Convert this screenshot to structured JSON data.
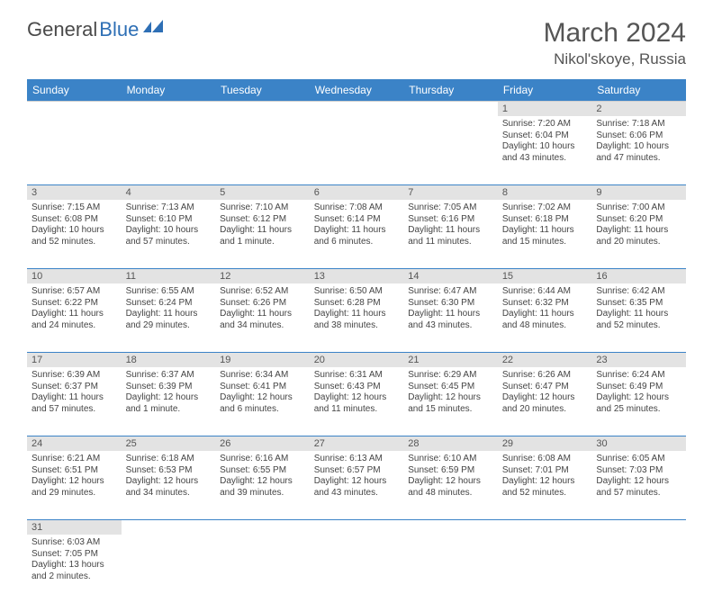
{
  "brand": {
    "part1": "General",
    "part2": "Blue"
  },
  "title": {
    "month": "March 2024",
    "location": "Nikol'skoye, Russia"
  },
  "colors": {
    "header_bg": "#3b83c7",
    "daynum_bg": "#e3e3e3",
    "rule": "#3b83c7"
  },
  "dow": [
    "Sunday",
    "Monday",
    "Tuesday",
    "Wednesday",
    "Thursday",
    "Friday",
    "Saturday"
  ],
  "weeks": [
    [
      null,
      null,
      null,
      null,
      null,
      {
        "n": "1",
        "sr": "Sunrise: 7:20 AM",
        "ss": "Sunset: 6:04 PM",
        "d1": "Daylight: 10 hours",
        "d2": "and 43 minutes."
      },
      {
        "n": "2",
        "sr": "Sunrise: 7:18 AM",
        "ss": "Sunset: 6:06 PM",
        "d1": "Daylight: 10 hours",
        "d2": "and 47 minutes."
      }
    ],
    [
      {
        "n": "3",
        "sr": "Sunrise: 7:15 AM",
        "ss": "Sunset: 6:08 PM",
        "d1": "Daylight: 10 hours",
        "d2": "and 52 minutes."
      },
      {
        "n": "4",
        "sr": "Sunrise: 7:13 AM",
        "ss": "Sunset: 6:10 PM",
        "d1": "Daylight: 10 hours",
        "d2": "and 57 minutes."
      },
      {
        "n": "5",
        "sr": "Sunrise: 7:10 AM",
        "ss": "Sunset: 6:12 PM",
        "d1": "Daylight: 11 hours",
        "d2": "and 1 minute."
      },
      {
        "n": "6",
        "sr": "Sunrise: 7:08 AM",
        "ss": "Sunset: 6:14 PM",
        "d1": "Daylight: 11 hours",
        "d2": "and 6 minutes."
      },
      {
        "n": "7",
        "sr": "Sunrise: 7:05 AM",
        "ss": "Sunset: 6:16 PM",
        "d1": "Daylight: 11 hours",
        "d2": "and 11 minutes."
      },
      {
        "n": "8",
        "sr": "Sunrise: 7:02 AM",
        "ss": "Sunset: 6:18 PM",
        "d1": "Daylight: 11 hours",
        "d2": "and 15 minutes."
      },
      {
        "n": "9",
        "sr": "Sunrise: 7:00 AM",
        "ss": "Sunset: 6:20 PM",
        "d1": "Daylight: 11 hours",
        "d2": "and 20 minutes."
      }
    ],
    [
      {
        "n": "10",
        "sr": "Sunrise: 6:57 AM",
        "ss": "Sunset: 6:22 PM",
        "d1": "Daylight: 11 hours",
        "d2": "and 24 minutes."
      },
      {
        "n": "11",
        "sr": "Sunrise: 6:55 AM",
        "ss": "Sunset: 6:24 PM",
        "d1": "Daylight: 11 hours",
        "d2": "and 29 minutes."
      },
      {
        "n": "12",
        "sr": "Sunrise: 6:52 AM",
        "ss": "Sunset: 6:26 PM",
        "d1": "Daylight: 11 hours",
        "d2": "and 34 minutes."
      },
      {
        "n": "13",
        "sr": "Sunrise: 6:50 AM",
        "ss": "Sunset: 6:28 PM",
        "d1": "Daylight: 11 hours",
        "d2": "and 38 minutes."
      },
      {
        "n": "14",
        "sr": "Sunrise: 6:47 AM",
        "ss": "Sunset: 6:30 PM",
        "d1": "Daylight: 11 hours",
        "d2": "and 43 minutes."
      },
      {
        "n": "15",
        "sr": "Sunrise: 6:44 AM",
        "ss": "Sunset: 6:32 PM",
        "d1": "Daylight: 11 hours",
        "d2": "and 48 minutes."
      },
      {
        "n": "16",
        "sr": "Sunrise: 6:42 AM",
        "ss": "Sunset: 6:35 PM",
        "d1": "Daylight: 11 hours",
        "d2": "and 52 minutes."
      }
    ],
    [
      {
        "n": "17",
        "sr": "Sunrise: 6:39 AM",
        "ss": "Sunset: 6:37 PM",
        "d1": "Daylight: 11 hours",
        "d2": "and 57 minutes."
      },
      {
        "n": "18",
        "sr": "Sunrise: 6:37 AM",
        "ss": "Sunset: 6:39 PM",
        "d1": "Daylight: 12 hours",
        "d2": "and 1 minute."
      },
      {
        "n": "19",
        "sr": "Sunrise: 6:34 AM",
        "ss": "Sunset: 6:41 PM",
        "d1": "Daylight: 12 hours",
        "d2": "and 6 minutes."
      },
      {
        "n": "20",
        "sr": "Sunrise: 6:31 AM",
        "ss": "Sunset: 6:43 PM",
        "d1": "Daylight: 12 hours",
        "d2": "and 11 minutes."
      },
      {
        "n": "21",
        "sr": "Sunrise: 6:29 AM",
        "ss": "Sunset: 6:45 PM",
        "d1": "Daylight: 12 hours",
        "d2": "and 15 minutes."
      },
      {
        "n": "22",
        "sr": "Sunrise: 6:26 AM",
        "ss": "Sunset: 6:47 PM",
        "d1": "Daylight: 12 hours",
        "d2": "and 20 minutes."
      },
      {
        "n": "23",
        "sr": "Sunrise: 6:24 AM",
        "ss": "Sunset: 6:49 PM",
        "d1": "Daylight: 12 hours",
        "d2": "and 25 minutes."
      }
    ],
    [
      {
        "n": "24",
        "sr": "Sunrise: 6:21 AM",
        "ss": "Sunset: 6:51 PM",
        "d1": "Daylight: 12 hours",
        "d2": "and 29 minutes."
      },
      {
        "n": "25",
        "sr": "Sunrise: 6:18 AM",
        "ss": "Sunset: 6:53 PM",
        "d1": "Daylight: 12 hours",
        "d2": "and 34 minutes."
      },
      {
        "n": "26",
        "sr": "Sunrise: 6:16 AM",
        "ss": "Sunset: 6:55 PM",
        "d1": "Daylight: 12 hours",
        "d2": "and 39 minutes."
      },
      {
        "n": "27",
        "sr": "Sunrise: 6:13 AM",
        "ss": "Sunset: 6:57 PM",
        "d1": "Daylight: 12 hours",
        "d2": "and 43 minutes."
      },
      {
        "n": "28",
        "sr": "Sunrise: 6:10 AM",
        "ss": "Sunset: 6:59 PM",
        "d1": "Daylight: 12 hours",
        "d2": "and 48 minutes."
      },
      {
        "n": "29",
        "sr": "Sunrise: 6:08 AM",
        "ss": "Sunset: 7:01 PM",
        "d1": "Daylight: 12 hours",
        "d2": "and 52 minutes."
      },
      {
        "n": "30",
        "sr": "Sunrise: 6:05 AM",
        "ss": "Sunset: 7:03 PM",
        "d1": "Daylight: 12 hours",
        "d2": "and 57 minutes."
      }
    ],
    [
      {
        "n": "31",
        "sr": "Sunrise: 6:03 AM",
        "ss": "Sunset: 7:05 PM",
        "d1": "Daylight: 13 hours",
        "d2": "and 2 minutes."
      },
      null,
      null,
      null,
      null,
      null,
      null
    ]
  ]
}
